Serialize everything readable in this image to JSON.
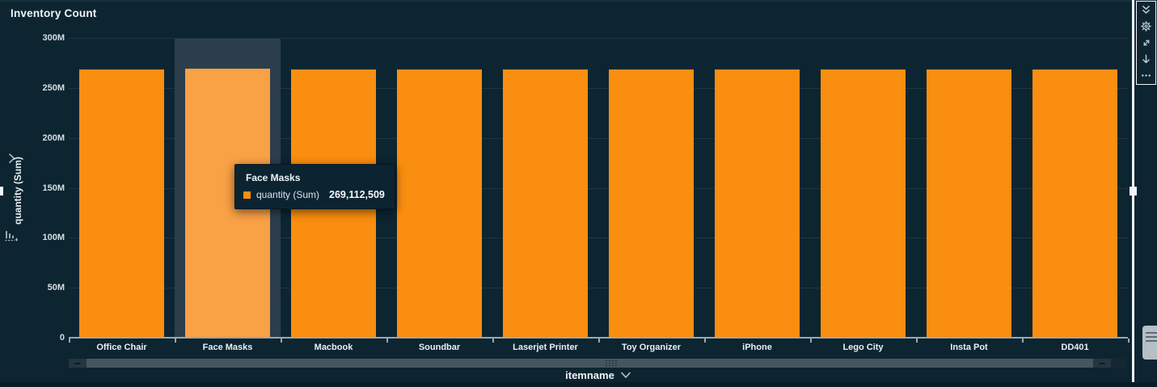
{
  "widget": {
    "title": "Inventory Count"
  },
  "chart_data": {
    "type": "bar",
    "categories": [
      "Office Chair",
      "Face Masks",
      "Macbook",
      "Soundbar",
      "Laserjet Printer",
      "Toy Organizer",
      "iPhone",
      "Lego City",
      "Insta Pot",
      "DD401"
    ],
    "series": [
      {
        "name": "quantity (Sum)",
        "values": [
          268500000,
          269112509,
          268500000,
          268500000,
          268500000,
          268500000,
          268500000,
          268500000,
          268500000,
          268500000
        ]
      }
    ],
    "title": "Inventory Count",
    "xlabel": "itemname",
    "ylabel": "quantity (Sum)",
    "ylim": [
      0,
      300000000
    ],
    "ytick_values": [
      0,
      50000000,
      100000000,
      150000000,
      200000000,
      250000000,
      300000000
    ],
    "ytick_labels": [
      "0",
      "50M",
      "100M",
      "150M",
      "200M",
      "250M",
      "300M"
    ],
    "grid": true,
    "legend": "none",
    "highlighted_category": "Face Masks"
  },
  "tooltip": {
    "title": "Face Masks",
    "series_label": "quantity (Sum)",
    "value": "269,112,509"
  },
  "x_axis": {
    "field_label": "itemname"
  },
  "colors": {
    "background": "#0d2531",
    "bar": "#fa8e10",
    "bar_highlight": "#f9a145",
    "hover_band": "#2c3e4b",
    "gridline": "#203541",
    "axis_line": "#9aa7ae",
    "tooltip_bg": "#0c2432",
    "selection_border": "#f2f6f8"
  },
  "icons": {
    "toolbar": [
      "double-chevron-down",
      "gear",
      "maximize",
      "download",
      "ellipsis"
    ],
    "left_rail": [
      "chevron-right",
      "sort-bars"
    ],
    "x_field": [
      "chevron-down"
    ]
  }
}
